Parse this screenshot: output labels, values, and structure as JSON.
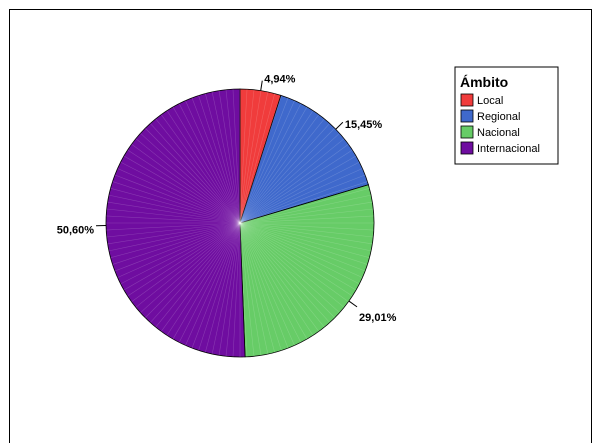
{
  "chart_data": {
    "type": "pie",
    "title": "",
    "categories": [
      "Local",
      "Regional",
      "Nacional",
      "Internacional"
    ],
    "values": [
      4.94,
      15.45,
      29.01,
      50.6
    ],
    "value_labels": [
      "4,94%",
      "15,45%",
      "29,01%",
      "50,60%"
    ],
    "colors": [
      "#f03c3c",
      "#3f69cc",
      "#67cc67",
      "#6f0da0"
    ],
    "legend": {
      "title": "Ámbito",
      "placement": "top-right",
      "entries": [
        "Local",
        "Regional",
        "Nacional",
        "Internacional"
      ]
    }
  }
}
